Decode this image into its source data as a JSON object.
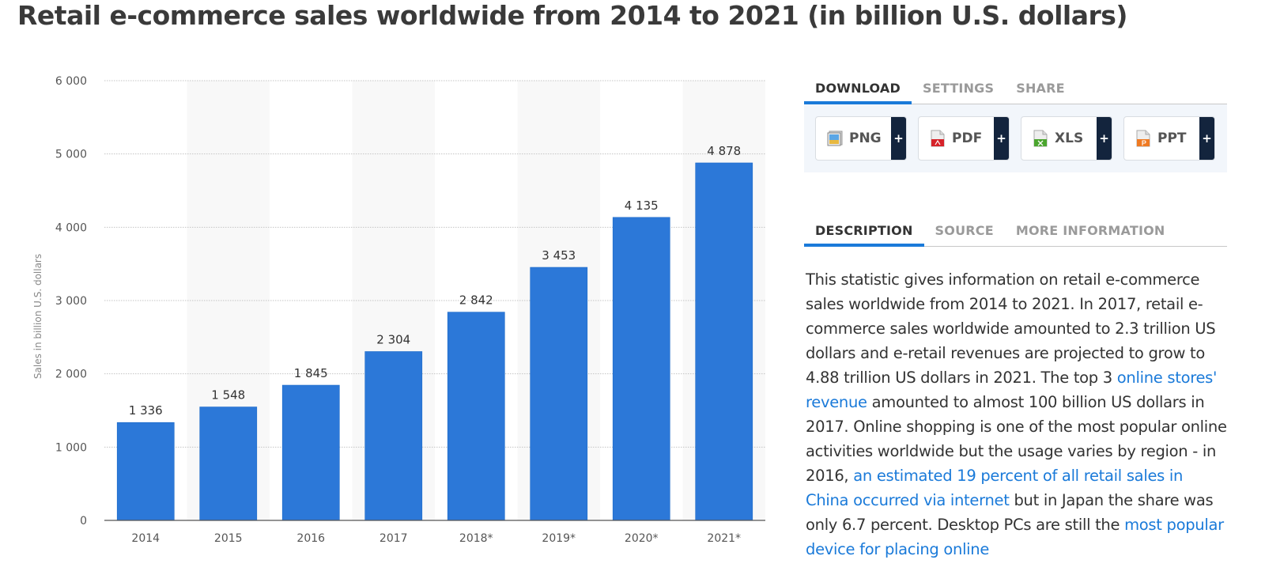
{
  "page": {
    "title": "Retail e-commerce sales worldwide from 2014 to 2021 (in billion U.S. dollars)"
  },
  "colors": {
    "bar": "#2c78d8",
    "accent": "#1a7ad9",
    "plus_button": "#13243d"
  },
  "chart_data": {
    "type": "bar",
    "title": "Retail e-commerce sales worldwide from 2014 to 2021 (in billion U.S. dollars)",
    "xlabel": "",
    "ylabel": "Sales in billion U.S. dollars",
    "categories": [
      "2014",
      "2015",
      "2016",
      "2017",
      "2018*",
      "2019*",
      "2020*",
      "2021*"
    ],
    "values": [
      1336,
      1548,
      1845,
      2304,
      2842,
      3453,
      4135,
      4878
    ],
    "value_labels": [
      "1 336",
      "1 548",
      "1 845",
      "2 304",
      "2 842",
      "3 453",
      "4 135",
      "4 878"
    ],
    "ylim": [
      0,
      6000
    ],
    "yticks": [
      0,
      1000,
      2000,
      3000,
      4000,
      5000,
      6000
    ],
    "ytick_labels": [
      "0",
      "1 000",
      "2 000",
      "3 000",
      "4 000",
      "5 000",
      "6 000"
    ],
    "grid": true,
    "legend": "none"
  },
  "download": {
    "tabs": [
      {
        "label": "DOWNLOAD",
        "active": true
      },
      {
        "label": "SETTINGS",
        "active": false
      },
      {
        "label": "SHARE",
        "active": false
      }
    ],
    "buttons": [
      {
        "label": "PNG",
        "icon": "image-file-icon",
        "plus": "+"
      },
      {
        "label": "PDF",
        "icon": "pdf-file-icon",
        "plus": "+"
      },
      {
        "label": "XLS",
        "icon": "excel-file-icon",
        "plus": "+"
      },
      {
        "label": "PPT",
        "icon": "powerpoint-file-icon",
        "plus": "+"
      }
    ]
  },
  "info": {
    "tabs": [
      {
        "label": "DESCRIPTION",
        "active": true
      },
      {
        "label": "SOURCE",
        "active": false
      },
      {
        "label": "MORE INFORMATION",
        "active": false
      }
    ],
    "description": {
      "t1": "This statistic gives information on retail e-commerce sales worldwide from 2014 to 2021. In 2017, retail e-commerce sales worldwide amounted to 2.3 trillion US dollars and e-retail revenues are projected to grow to 4.88 trillion US dollars in 2021. The top 3 ",
      "link1": "online stores' revenue",
      "t2": " amounted to almost 100 billion US dollars in 2017. Online shopping is one of the most popular online activities worldwide but the usage varies by region - in 2016, ",
      "link2": "an estimated 19 percent of all retail sales in China occurred via internet",
      "t3": " but in Japan the share was only 6.7 percent. Desktop PCs are still the ",
      "link3": "most popular device for placing online"
    }
  }
}
